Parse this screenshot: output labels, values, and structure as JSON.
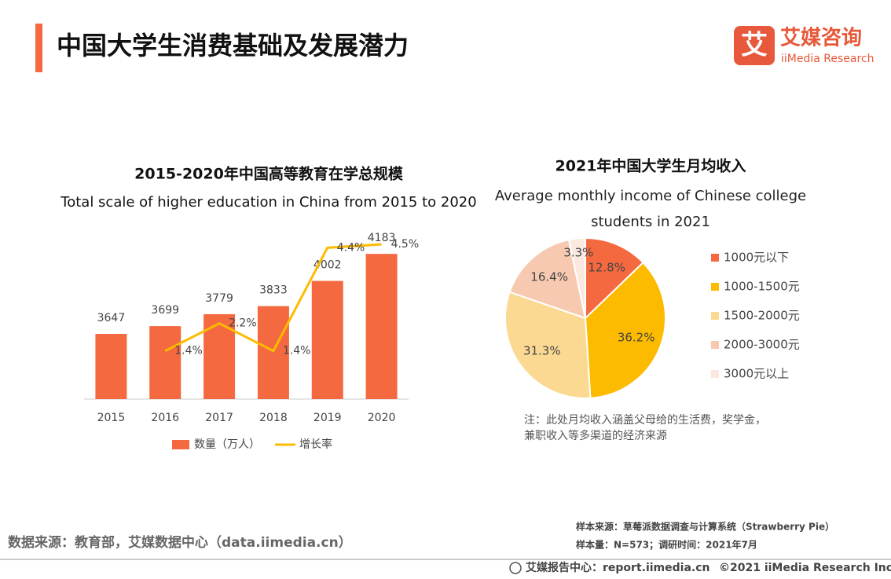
{
  "header": {
    "title": "中国大学生消费基础及发展潜力",
    "logo_mark": "艾",
    "logo_name": "艾媒咨询",
    "logo_sub": "iiMedia Research"
  },
  "chart_data": [
    {
      "type": "bar",
      "title": "2015-2020年中国高等教育在学总规模",
      "subtitle": "Total scale of higher education in China from 2015 to 2020",
      "categories": [
        "2015",
        "2016",
        "2017",
        "2018",
        "2019",
        "2020"
      ],
      "ylim": [
        3210,
        4305
      ],
      "y2lim": [
        0,
        4.75
      ],
      "series": [
        {
          "name": "数量（万人）",
          "type": "bar",
          "color": "#f4693f",
          "values": [
            3647,
            3699,
            3779,
            3833,
            4002,
            4183
          ]
        },
        {
          "name": "增长率",
          "type": "line",
          "axis": "y2",
          "color": "#fdbb00",
          "values": [
            null,
            1.4,
            2.2,
            1.4,
            4.4,
            4.5
          ],
          "value_labels": [
            null,
            "1.4%",
            "2.2%",
            "1.4%",
            "4.4%",
            "4.5%"
          ]
        }
      ]
    },
    {
      "type": "pie",
      "title": "2021年中国大学生月均收入",
      "subtitle": "Average monthly income of Chinese college students in 2021",
      "categories": [
        "1000元以下",
        "1000-1500元",
        "1500-2000元",
        "2000-3000元",
        "3000元以上"
      ],
      "values": [
        12.8,
        36.2,
        31.3,
        16.4,
        3.3
      ],
      "value_labels": [
        "12.8%",
        "36.2%",
        "31.3%",
        "16.4%",
        "3.3%"
      ],
      "colors": [
        "#f4693f",
        "#fdbb00",
        "#fcd992",
        "#f7c9b0",
        "#fbe9df"
      ],
      "note": "注：此处月均收入涵盖父母给的生活费，奖学金，兼职收入等多渠道的经济来源"
    }
  ],
  "footer": {
    "source": "数据来源：教育部，艾媒数据中心（data.iimedia.cn）",
    "sample_source": "样本来源：草莓派数据调查与计算系统（Strawberry Pie）",
    "sample_size": "样本量：N=573；调研时间：2021年7月",
    "report_center": "艾媒报告中心：report.iimedia.cn",
    "copyright": "©2021  iiMedia Research  Inc"
  }
}
